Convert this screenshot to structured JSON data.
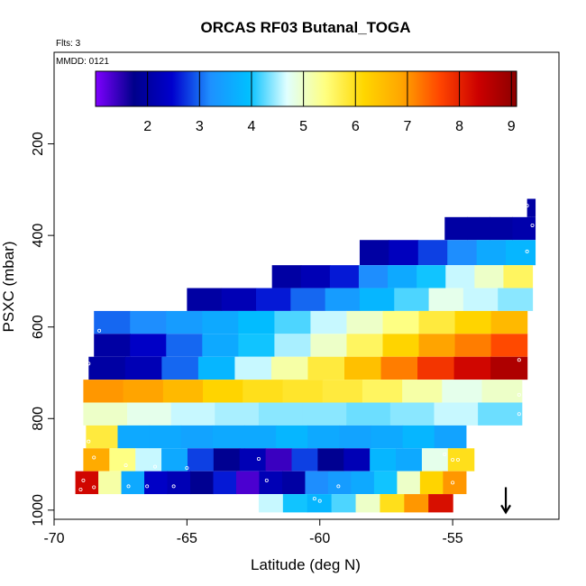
{
  "chart_data": {
    "type": "heatmap",
    "title": "ORCAS RF03 Butanal_TOGA",
    "subtitle": "Flts: 3",
    "annotation": "MMDD: 0121",
    "xlabel": "Latitude (deg N)",
    "ylabel": "PSXC (mbar)",
    "xlim": [
      -70,
      -51
    ],
    "ylim": [
      1020,
      0
    ],
    "y_reversed": true,
    "grid": false,
    "x_ticks": [
      {
        "value": -70,
        "label": "-70"
      },
      {
        "value": -65,
        "label": "-65"
      },
      {
        "value": -60,
        "label": "-60"
      },
      {
        "value": -55,
        "label": "-55"
      }
    ],
    "y_ticks": [
      {
        "value": 200,
        "label": "200"
      },
      {
        "value": 400,
        "label": "400"
      },
      {
        "value": 600,
        "label": "600"
      },
      {
        "value": 800,
        "label": "800"
      },
      {
        "value": 1000,
        "label": "1000"
      }
    ],
    "colorbar": {
      "min": 1.0,
      "max": 9.1,
      "colors": [
        "#7f00ff",
        "#00008b",
        "#0000cd",
        "#1e90ff",
        "#00bfff",
        "#e0ffff",
        "#ffff80",
        "#ffd700",
        "#ffa500",
        "#ff4500",
        "#cc0000",
        "#8b0000"
      ],
      "ticks": [
        {
          "value": 2,
          "label": "2"
        },
        {
          "value": 3,
          "label": "3"
        },
        {
          "value": 4,
          "label": "4"
        },
        {
          "value": 5,
          "label": "5"
        },
        {
          "value": 6,
          "label": "6"
        },
        {
          "value": 7,
          "label": "7"
        },
        {
          "value": 8,
          "label": "8"
        },
        {
          "value": 9,
          "label": "9"
        }
      ]
    },
    "rows": [
      {
        "p0": 320,
        "p1": 360,
        "x0": -52.2,
        "x1": -51.9,
        "v": [
          2.0,
          2.0
        ]
      },
      {
        "p0": 360,
        "p1": 410,
        "x0": -55.3,
        "x1": -51.9,
        "v": [
          2.0,
          2.0,
          2.0,
          2.1
        ]
      },
      {
        "p0": 410,
        "p1": 465,
        "x0": -58.5,
        "x1": -51.9,
        "v": [
          2.0,
          2.3,
          2.8,
          3.2,
          3.6,
          3.8
        ]
      },
      {
        "p0": 465,
        "p1": 515,
        "x0": -61.8,
        "x1": -52.0,
        "v": [
          2.0,
          2.2,
          2.6,
          3.2,
          3.6,
          4.0,
          4.6,
          5.0,
          5.6
        ]
      },
      {
        "p0": 515,
        "p1": 565,
        "x0": -65.0,
        "x1": -52.0,
        "v": [
          2.0,
          2.2,
          2.6,
          3.0,
          3.4,
          3.8,
          4.2,
          4.8,
          4.6,
          4.4
        ]
      },
      {
        "p0": 565,
        "p1": 615,
        "x0": -68.5,
        "x1": -52.2,
        "v": [
          3.0,
          3.2,
          3.4,
          3.6,
          3.9,
          4.2,
          4.6,
          5.0,
          5.4,
          5.8,
          6.2,
          6.6
        ]
      },
      {
        "p0": 615,
        "p1": 665,
        "x0": -68.5,
        "x1": -52.2,
        "v": [
          2.0,
          2.4,
          3.0,
          3.6,
          4.0,
          4.5,
          5.0,
          5.6,
          6.2,
          6.9,
          7.2,
          7.6
        ]
      },
      {
        "p0": 665,
        "p1": 715,
        "x0": -68.7,
        "x1": -52.2,
        "v": [
          2.0,
          2.2,
          3.0,
          3.8,
          4.6,
          5.2,
          5.8,
          6.5,
          7.2,
          7.8,
          8.3,
          8.7
        ]
      },
      {
        "p0": 715,
        "p1": 765,
        "x0": -68.9,
        "x1": -52.4,
        "v": [
          7.0,
          6.9,
          6.6,
          6.2,
          6.0,
          5.9,
          5.8,
          5.6,
          5.2,
          4.8,
          5.0
        ]
      },
      {
        "p0": 765,
        "p1": 815,
        "x0": -68.9,
        "x1": -52.4,
        "v": [
          5.0,
          4.8,
          4.6,
          4.5,
          4.4,
          4.4,
          4.3,
          4.4,
          4.6,
          4.3
        ]
      },
      {
        "p0": 815,
        "p1": 865,
        "x0": -68.8,
        "x1": -54.5,
        "v": [
          5.8,
          3.6,
          3.6,
          3.5,
          3.6,
          3.6,
          3.8,
          3.6,
          3.5,
          3.6,
          3.8,
          3.5
        ]
      },
      {
        "p0": 865,
        "p1": 915,
        "x0": -68.9,
        "x1": -54.2,
        "v": [
          6.8,
          5.4,
          4.6,
          3.6,
          2.8,
          1.8,
          2.2,
          1.4,
          2.8,
          1.8,
          2.2,
          3.8,
          3.6,
          4.8,
          6.0
        ]
      },
      {
        "p0": 915,
        "p1": 965,
        "x0": -69.2,
        "x1": -54.5,
        "v": [
          8.3,
          5.2,
          3.6,
          2.4,
          2.2,
          1.8,
          2.6,
          1.3,
          2.2,
          2.0,
          3.2,
          3.4,
          3.6,
          4.0,
          5.0,
          6.2,
          7.0
        ]
      },
      {
        "p0": 965,
        "p1": 1005,
        "x0": -62.3,
        "x1": -55.0,
        "v": [
          4.6,
          4.0,
          3.8,
          4.2,
          5.0,
          6.0,
          7.0,
          8.2
        ]
      }
    ],
    "points": [
      {
        "x": -52.2,
        "y": 335
      },
      {
        "x": -52.0,
        "y": 378
      },
      {
        "x": -52.2,
        "y": 435
      },
      {
        "x": -68.3,
        "y": 608
      },
      {
        "x": -68.7,
        "y": 680
      },
      {
        "x": -52.5,
        "y": 672
      },
      {
        "x": -52.5,
        "y": 748
      },
      {
        "x": -52.5,
        "y": 790
      },
      {
        "x": -68.7,
        "y": 850
      },
      {
        "x": -68.5,
        "y": 885
      },
      {
        "x": -67.3,
        "y": 902
      },
      {
        "x": -66.2,
        "y": 905
      },
      {
        "x": -65.0,
        "y": 908
      },
      {
        "x": -62.3,
        "y": 888
      },
      {
        "x": -55.3,
        "y": 878
      },
      {
        "x": -55.0,
        "y": 890
      },
      {
        "x": -54.8,
        "y": 890
      },
      {
        "x": -68.9,
        "y": 935
      },
      {
        "x": -69.0,
        "y": 955
      },
      {
        "x": -68.5,
        "y": 950
      },
      {
        "x": -67.2,
        "y": 948
      },
      {
        "x": -66.5,
        "y": 948
      },
      {
        "x": -65.5,
        "y": 948
      },
      {
        "x": -62.0,
        "y": 935
      },
      {
        "x": -59.3,
        "y": 948
      },
      {
        "x": -60.2,
        "y": 975
      },
      {
        "x": -60.0,
        "y": 980
      },
      {
        "x": -55.0,
        "y": 940
      }
    ],
    "arrow": {
      "x": -53.0,
      "y_from": 950,
      "y_to": 1005
    }
  }
}
